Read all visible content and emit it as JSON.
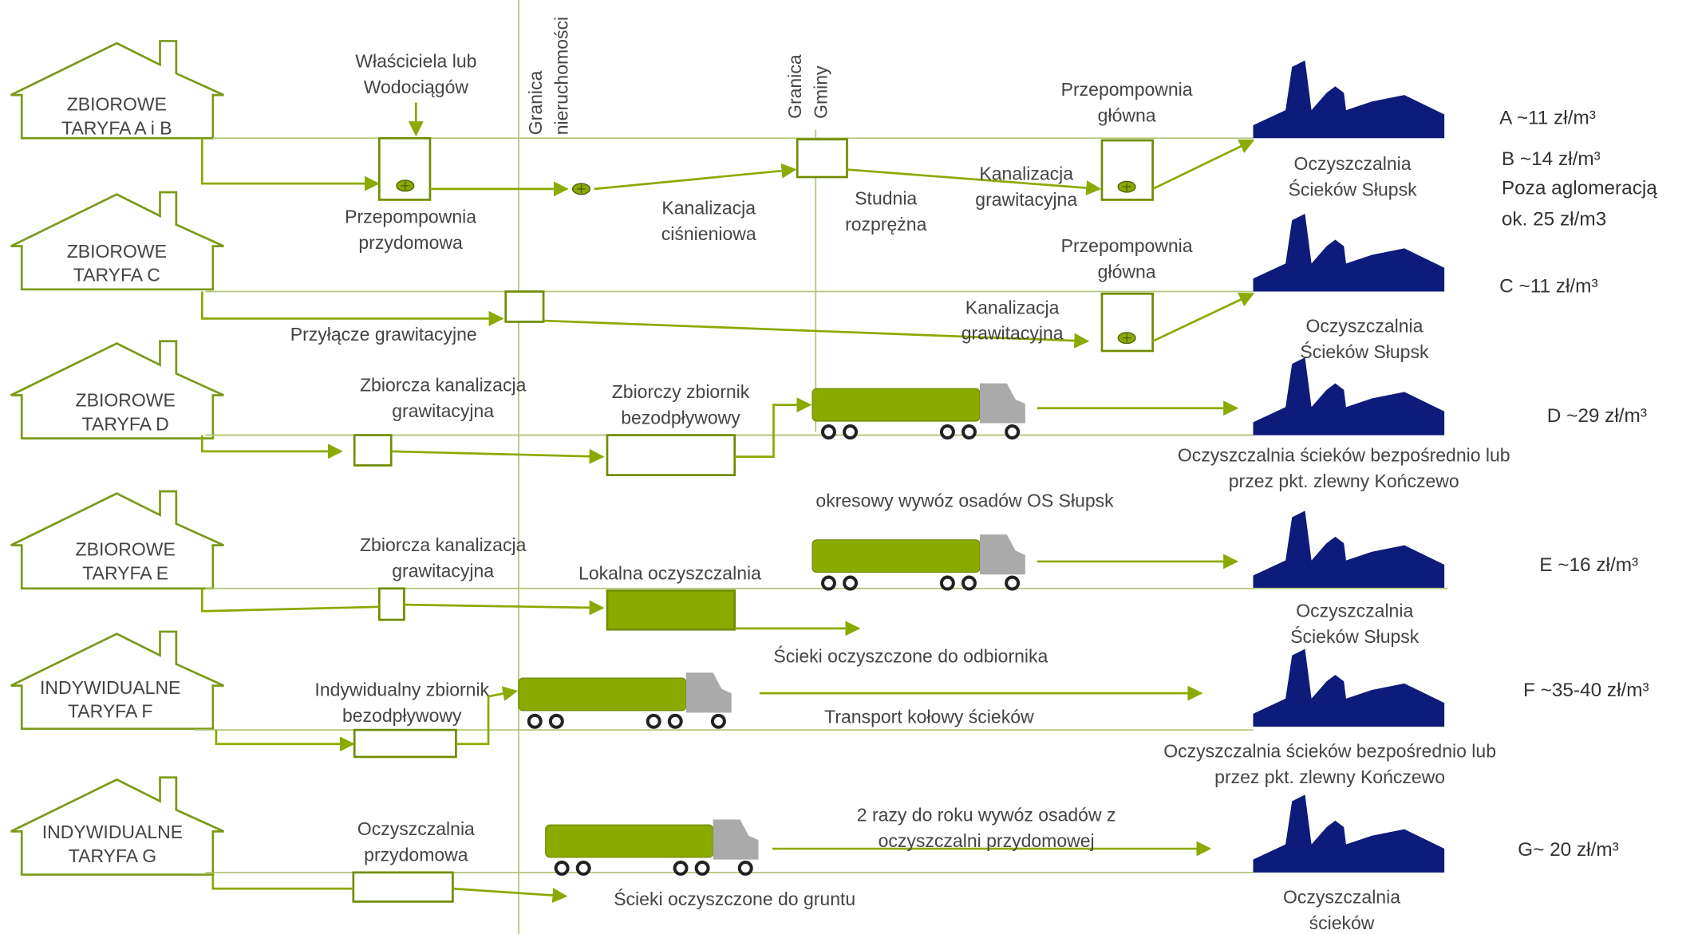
{
  "rows": [
    {
      "house": [
        "ZBIOROWE",
        "TARYFA A i B"
      ],
      "tariff": [
        "A ~11 zł/m³",
        "B ~14 zł/m³",
        "Poza aglomeracją",
        "ok. 25 zł/m3"
      ],
      "labels": [
        [
          "Właściciela lub",
          "Wodociągów"
        ],
        [
          "Przepompownia",
          "główna"
        ],
        [
          "Przepompownia",
          "przydomowa"
        ],
        [
          "Kanalizacja",
          "ciśnieniowa"
        ],
        [
          "Studnia",
          "rozprężna"
        ],
        [
          "Kanalizacja",
          "grawitacyjna"
        ],
        [
          "Oczyszczalnia",
          "Ścieków Słupsk"
        ]
      ]
    },
    {
      "house": [
        "ZBIOROWE",
        "TARYFA C"
      ],
      "tariff": [
        "C ~11 zł/m³"
      ],
      "labels": [
        [
          "Przepompownia",
          "główna"
        ],
        [
          "Przyłącze grawitacyjne"
        ],
        [
          "Kanalizacja",
          "grawitacyjna"
        ],
        [
          "Oczyszczalnia",
          "Ścieków Słupsk"
        ]
      ]
    },
    {
      "house": [
        "ZBIOROWE",
        "TARYFA D"
      ],
      "tariff": [
        "D ~29  zł/m³"
      ],
      "labels": [
        [
          "Zbiorcza kanalizacja",
          "grawitacyjna"
        ],
        [
          "Zbiorczy zbiornik",
          "bezodpływowy"
        ],
        [
          "Oczyszczalnia ścieków bezpośrednio lub",
          "przez pkt. zlewny Kończewo"
        ],
        [
          "okresowy wywóz osadów OS Słupsk"
        ]
      ]
    },
    {
      "house": [
        "ZBIOROWE",
        "TARYFA E"
      ],
      "tariff": [
        "E ~16  zł/m³"
      ],
      "labels": [
        [
          "Zbiorcza kanalizacja",
          "grawitacyjna"
        ],
        [
          "Lokalna oczyszczalnia"
        ],
        [
          "Ścieki oczyszczone do odbiornika"
        ],
        [
          "Oczyszczalnia",
          "Ścieków Słupsk"
        ]
      ]
    },
    {
      "house": [
        "INDYWIDUALNE",
        "TARYFA F"
      ],
      "tariff": [
        "F ~35-40  zł/m³"
      ],
      "labels": [
        [
          "Indywidualny zbiornik",
          "bezodpływowy"
        ],
        [
          "Transport kołowy ścieków"
        ],
        [
          "Oczyszczalnia ścieków bezpośrednio lub",
          "przez pkt. zlewny Kończewo"
        ]
      ]
    },
    {
      "house": [
        "INDYWIDUALNE",
        "TARYFA G"
      ],
      "tariff": [
        "G~ 20  zł/m³"
      ],
      "labels": [
        [
          "Oczyszczalnia",
          "przydomowa"
        ],
        [
          "2 razy do roku wywóz osadów z",
          "oczyszczalni przydomowej"
        ],
        [
          "Ścieki oczyszczone do gruntu"
        ],
        [
          "Oczyszczalnia",
          "ścieków"
        ]
      ]
    }
  ],
  "boundaries": [
    [
      "Granica",
      "nieruchomości"
    ],
    [
      "Granica",
      "Gminy"
    ]
  ]
}
